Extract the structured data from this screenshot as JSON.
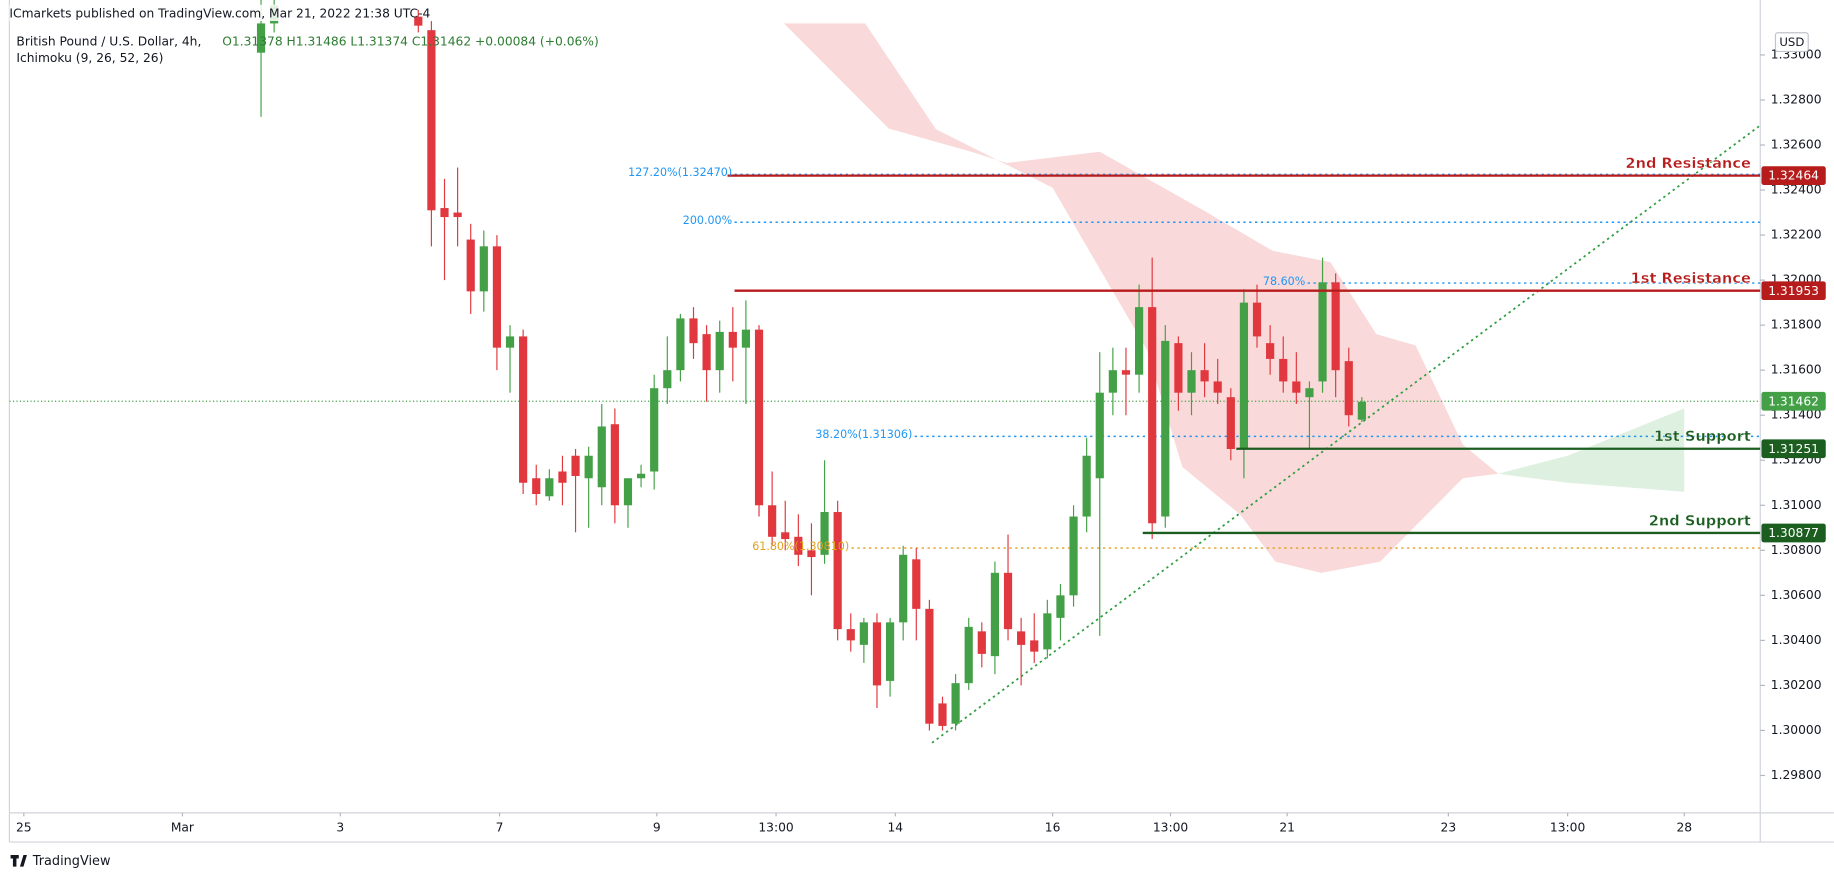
{
  "chart_data": {
    "type": "candlestick",
    "publisher": "ICmarkets published on TradingView.com, Mar 21, 2022 21:38 UTC-4",
    "title": "British Pound / U.S. Dollar, 4h,",
    "ohlc_text": "O1.31378 H1.31486 L1.31374 C1.31462 +0.00084 (+0.06%)",
    "indicator": "Ichimoku (9, 26, 52, 26)",
    "currency": "USD",
    "brand": "TradingView",
    "up_color": "#43a047",
    "down_color": "#e0383e",
    "ylim": [
      1.29634,
      1.33244
    ],
    "yticks": [
      {
        "value": 1.298,
        "label": "1.29800"
      },
      {
        "value": 1.3,
        "label": "1.30000"
      },
      {
        "value": 1.302,
        "label": "1.30200"
      },
      {
        "value": 1.304,
        "label": "1.30400"
      },
      {
        "value": 1.306,
        "label": "1.30600"
      },
      {
        "value": 1.308,
        "label": "1.30800"
      },
      {
        "value": 1.31,
        "label": "1.31000"
      },
      {
        "value": 1.312,
        "label": "1.31200"
      },
      {
        "value": 1.314,
        "label": "1.31400"
      },
      {
        "value": 1.316,
        "label": "1.31600"
      },
      {
        "value": 1.318,
        "label": "1.31800"
      },
      {
        "value": 1.32,
        "label": "1.32000"
      },
      {
        "value": 1.322,
        "label": "1.32200"
      },
      {
        "value": 1.324,
        "label": "1.32400"
      },
      {
        "value": 1.326,
        "label": "1.32600"
      },
      {
        "value": 1.328,
        "label": "1.32800"
      },
      {
        "value": 1.33,
        "label": "1.33000"
      }
    ],
    "xlim": [
      -13.2,
      120.4
    ],
    "xticks": [
      {
        "value": -12.1,
        "label": "25"
      },
      {
        "value": 0,
        "label": "Mar"
      },
      {
        "value": 12.05,
        "label": "3"
      },
      {
        "value": 24.2,
        "label": "7"
      },
      {
        "value": 36.2,
        "label": "9"
      },
      {
        "value": 45.3,
        "label": "13:00"
      },
      {
        "value": 54.4,
        "label": "14"
      },
      {
        "value": 66.4,
        "label": "16"
      },
      {
        "value": 75.4,
        "label": "13:00"
      },
      {
        "value": 84.3,
        "label": "21"
      },
      {
        "value": 96.6,
        "label": "23"
      },
      {
        "value": 105.7,
        "label": "13:00"
      },
      {
        "value": 114.6,
        "label": "28"
      }
    ],
    "candles": {
      "x": [
        6,
        7,
        18,
        19,
        20,
        21,
        22,
        23,
        24,
        25,
        26,
        27,
        28,
        29,
        30,
        31,
        32,
        33,
        34,
        35,
        36,
        37,
        38,
        39,
        40,
        41,
        42,
        43,
        44,
        45,
        46,
        47,
        48,
        49,
        50,
        51,
        52,
        53,
        54,
        55,
        56,
        57,
        58,
        59,
        60,
        61,
        62,
        63,
        64,
        65,
        66,
        67,
        68,
        69,
        70,
        71,
        72,
        73,
        74,
        75,
        76,
        77,
        78,
        79,
        80,
        81,
        82,
        83,
        84,
        85,
        86,
        87,
        88,
        89,
        90
      ],
      "open": [
        1.3301,
        1.3314,
        1.3317,
        1.3311,
        1.3232,
        1.323,
        1.3218,
        1.3195,
        1.3215,
        1.317,
        1.3175,
        1.3112,
        1.3104,
        1.3115,
        1.3122,
        1.3112,
        1.3108,
        1.3136,
        1.31,
        1.3112,
        1.3115,
        1.3152,
        1.316,
        1.3183,
        1.3176,
        1.316,
        1.3177,
        1.317,
        1.3178,
        1.31,
        1.3088,
        1.3086,
        1.308,
        1.3078,
        1.3097,
        1.3045,
        1.3038,
        1.3048,
        1.3022,
        1.3048,
        1.3076,
        1.3054,
        1.3012,
        1.3003,
        1.3021,
        1.3044,
        1.3033,
        1.307,
        1.3044,
        1.304,
        1.3036,
        1.305,
        1.306,
        1.3095,
        1.3112,
        1.315,
        1.316,
        1.3158,
        1.3188,
        1.3095,
        1.3172,
        1.315,
        1.316,
        1.3155,
        1.3148,
        1.3125,
        1.319,
        1.3172,
        1.3165,
        1.3155,
        1.3148,
        1.3155,
        1.3199,
        1.3164,
        1.3138
      ],
      "high": [
        1.333,
        1.333,
        1.332,
        1.3315,
        1.3245,
        1.325,
        1.3225,
        1.3222,
        1.322,
        1.318,
        1.3178,
        1.3118,
        1.3116,
        1.3122,
        1.3125,
        1.3126,
        1.3145,
        1.3143,
        1.3112,
        1.3118,
        1.3158,
        1.3175,
        1.3185,
        1.3188,
        1.318,
        1.3182,
        1.3188,
        1.3191,
        1.318,
        1.3115,
        1.3102,
        1.3096,
        1.3092,
        1.312,
        1.3102,
        1.3052,
        1.305,
        1.3052,
        1.305,
        1.3082,
        1.3081,
        1.3058,
        1.3015,
        1.3025,
        1.305,
        1.3048,
        1.3075,
        1.3087,
        1.305,
        1.3052,
        1.3058,
        1.3065,
        1.31,
        1.313,
        1.3168,
        1.317,
        1.317,
        1.3198,
        1.321,
        1.318,
        1.3175,
        1.3168,
        1.3172,
        1.3165,
        1.3152,
        1.3196,
        1.3198,
        1.318,
        1.3175,
        1.3168,
        1.3155,
        1.321,
        1.3203,
        1.317,
        1.3148
      ],
      "low": [
        1.32725,
        1.331,
        1.331,
        1.3215,
        1.32,
        1.3215,
        1.3185,
        1.3186,
        1.316,
        1.315,
        1.3105,
        1.31,
        1.3102,
        1.31,
        1.3088,
        1.309,
        1.31,
        1.3092,
        1.309,
        1.3108,
        1.3107,
        1.3145,
        1.3155,
        1.3165,
        1.3146,
        1.315,
        1.3155,
        1.3145,
        1.3095,
        1.3082,
        1.308,
        1.3073,
        1.306,
        1.3074,
        1.304,
        1.3035,
        1.303,
        1.301,
        1.3015,
        1.304,
        1.304,
        1.3,
        1.3,
        1.3,
        1.3018,
        1.3028,
        1.3025,
        1.304,
        1.302,
        1.303,
        1.3032,
        1.304,
        1.3055,
        1.3088,
        1.3042,
        1.314,
        1.314,
        1.315,
        1.3085,
        1.309,
        1.3142,
        1.314,
        1.3148,
        1.3145,
        1.312,
        1.3112,
        1.317,
        1.3158,
        1.315,
        1.3145,
        1.3125,
        1.315,
        1.3148,
        1.3135,
        1.3137
      ],
      "close": [
        1.3314,
        1.3322,
        1.3313,
        1.3231,
        1.3228,
        1.3228,
        1.3195,
        1.3215,
        1.317,
        1.3175,
        1.311,
        1.3105,
        1.3112,
        1.311,
        1.3113,
        1.3122,
        1.3135,
        1.31,
        1.3112,
        1.3114,
        1.3152,
        1.316,
        1.3183,
        1.3172,
        1.316,
        1.3177,
        1.317,
        1.3178,
        1.31,
        1.3086,
        1.3085,
        1.3078,
        1.3077,
        1.3097,
        1.3045,
        1.304,
        1.3048,
        1.302,
        1.3048,
        1.3078,
        1.3054,
        1.3003,
        1.3002,
        1.3021,
        1.3046,
        1.3034,
        1.307,
        1.3045,
        1.3038,
        1.3035,
        1.3052,
        1.306,
        1.3095,
        1.3122,
        1.315,
        1.316,
        1.3158,
        1.3188,
        1.3092,
        1.3173,
        1.315,
        1.316,
        1.3155,
        1.315,
        1.3125,
        1.319,
        1.3175,
        1.3165,
        1.3155,
        1.315,
        1.3152,
        1.3199,
        1.316,
        1.314,
        1.3146
      ]
    },
    "cloud_red": {
      "color": "#f8d0d0",
      "upper": {
        "x": [
          45.9,
          53.9,
          60.2,
          62.9,
          70,
          77.9,
          83.2,
          87.6,
          91.1,
          94.1,
          97.7,
          100.4
        ],
        "y": [
          1.3314,
          1.32673,
          1.3257,
          1.3252,
          1.3257,
          1.3231,
          1.3213,
          1.3208,
          1.3176,
          1.3171,
          1.3127,
          1.3114
        ]
      },
      "lower": {
        "x": [
          52.1,
          57.5,
          66.4,
          73.6,
          76.3,
          80.7,
          83.4,
          86.9,
          91.4,
          97.7,
          100.4
        ],
        "y": [
          1.3314,
          1.3267,
          1.3241,
          1.3169,
          1.3117,
          1.3096,
          1.3075,
          1.307,
          1.3075,
          1.3112,
          1.3114
        ]
      }
    },
    "cloud_green": {
      "color": "#d6ecd8",
      "upper": {
        "x": [
          100.4,
          105.7,
          114.6
        ],
        "y": [
          1.3114,
          1.3122,
          1.3143
        ]
      },
      "lower": {
        "x": [
          100.4,
          105.7,
          114.6
        ],
        "y": [
          1.3114,
          1.311,
          1.3106
        ]
      }
    },
    "trendline": {
      "color": "#2e9e3e",
      "x": [
        57.2,
        120.3
      ],
      "y": [
        1.29945,
        1.32683
      ]
    },
    "last_price": {
      "value": 1.31462,
      "color": "#43a047"
    },
    "levels": [
      {
        "name": "2nd Resistance",
        "value": 1.32464,
        "color": "#b71c1c"
      },
      {
        "name": "1st Resistance",
        "value": 1.31953,
        "color": "#b71c1c"
      },
      {
        "name": "1st Support",
        "value": 1.31251,
        "color": "#1b5e20"
      },
      {
        "name": "2nd Support",
        "value": 1.30877,
        "color": "#1b5e20"
      }
    ],
    "fib_levels": [
      {
        "label": "127.20%(1.32470)",
        "value": 1.3247,
        "color": "#2196f3"
      },
      {
        "label": "200.00%",
        "value": 1.32257,
        "color": "#2196f3"
      },
      {
        "label": "78.60%",
        "value": 1.31987,
        "color": "#2196f3"
      },
      {
        "label": "38.20%(1.31306)",
        "value": 1.31306,
        "color": "#2196f3"
      },
      {
        "label": "61.80%(1.30810)",
        "value": 1.3081,
        "color": "#e0a020"
      }
    ]
  }
}
